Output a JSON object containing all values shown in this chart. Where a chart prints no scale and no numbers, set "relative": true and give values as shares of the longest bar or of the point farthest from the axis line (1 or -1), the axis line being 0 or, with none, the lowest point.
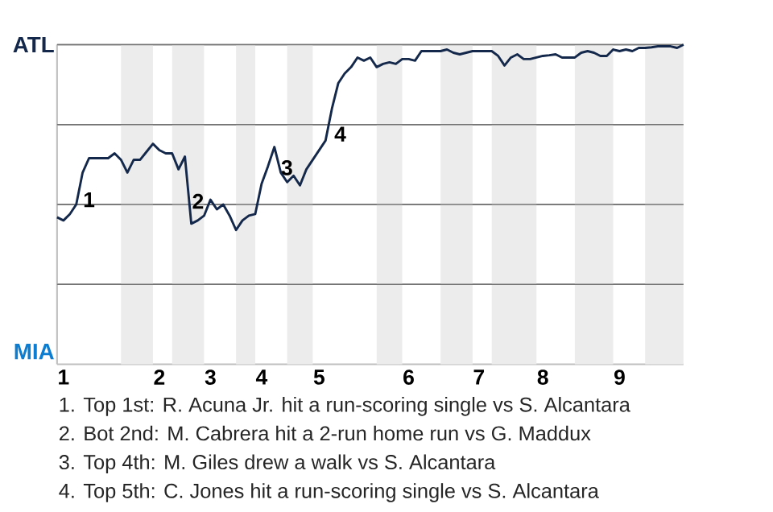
{
  "chart_data": {
    "type": "line",
    "relative": true,
    "tick_labels": "x",
    "grid": "y",
    "marker": "none",
    "line_style": "solid",
    "categories": [
      null,
      "1",
      null,
      null,
      null,
      null,
      null,
      null,
      null,
      null,
      null,
      null,
      null,
      null,
      null,
      null,
      "2",
      null,
      null,
      null,
      null,
      null,
      null,
      null,
      "3",
      null,
      null,
      null,
      null,
      null,
      null,
      null,
      "4",
      null,
      null,
      null,
      null,
      null,
      null,
      null,
      null,
      "5",
      null,
      null,
      null,
      null,
      null,
      null,
      null,
      null,
      null,
      null,
      null,
      null,
      null,
      "6",
      null,
      null,
      null,
      null,
      null,
      null,
      null,
      null,
      null,
      null,
      "7",
      null,
      null,
      null,
      null,
      null,
      null,
      null,
      null,
      null,
      "8",
      null,
      null,
      null,
      null,
      null,
      null,
      null,
      null,
      null,
      null,
      null,
      "9",
      null,
      null,
      null,
      null,
      null,
      null,
      null,
      null,
      null,
      null
    ],
    "series": [
      {
        "color": "#14284b",
        "values": [
          0.46,
          0.45,
          0.47,
          0.5,
          0.6,
          0.645,
          0.645,
          0.645,
          0.645,
          0.66,
          0.64,
          0.6,
          0.64,
          0.64,
          0.665,
          0.69,
          0.67,
          0.66,
          0.66,
          0.61,
          0.65,
          0.44,
          0.45,
          0.465,
          0.515,
          0.485,
          0.5,
          0.465,
          0.42,
          0.45,
          0.465,
          0.47,
          0.565,
          0.62,
          0.68,
          0.6,
          0.57,
          0.59,
          0.56,
          0.61,
          0.64,
          0.67,
          0.7,
          0.8,
          0.88,
          0.91,
          0.93,
          0.96,
          0.95,
          0.96,
          0.93,
          0.94,
          0.945,
          0.94,
          0.955,
          0.955,
          0.95,
          0.98,
          0.98,
          0.98,
          0.98,
          0.985,
          0.975,
          0.97,
          0.975,
          0.98,
          0.98,
          0.98,
          0.98,
          0.965,
          0.935,
          0.96,
          0.97,
          0.955,
          0.955,
          0.96,
          0.965,
          0.967,
          0.97,
          0.96,
          0.96,
          0.96,
          0.975,
          0.98,
          0.975,
          0.965,
          0.965,
          0.985,
          0.98,
          0.985,
          0.98,
          0.99,
          0.99,
          0.992,
          0.995,
          0.995,
          0.995,
          0.99,
          1.0
        ]
      }
    ],
    "annotations": [
      "ATL",
      "MIA",
      "1",
      "2",
      "3",
      "4",
      "1. Top 1st: R. Acuna Jr. hit a run-scoring single vs S. Alcantara",
      "2. Bot 2nd: M. Cabrera hit a 2-run home run vs G. Maddux",
      "3. Top 4th: M. Giles drew a walk vs S. Alcantara",
      "4. Top 5th: C. Jones hit a run-scoring single vs S. Alcantara"
    ]
  }
}
